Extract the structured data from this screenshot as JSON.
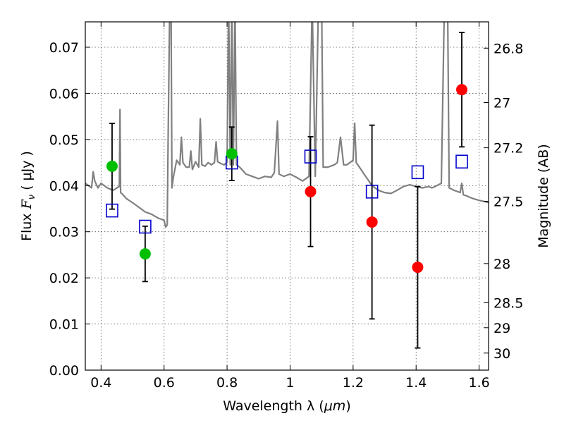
{
  "chart_data": {
    "type": "scatter",
    "xlabel_prefix": "Wavelength  λ (",
    "xlabel_unit": "μm",
    "xlabel_suffix": ")",
    "ylabel_prefix": "Flux  ",
    "ylabel_symbol": "F",
    "ylabel_subscript": "ν",
    "ylabel_suffix": "  ( μJy )",
    "y2label": "Magnitude (AB)",
    "xlim": [
      0.35,
      1.63
    ],
    "ylim": [
      0.0,
      0.0755
    ],
    "grid": true,
    "x_ticks": [
      0.4,
      0.6,
      0.8,
      1.0,
      1.2,
      1.4,
      1.6
    ],
    "x_tick_labels": [
      "0.4",
      "0.6",
      "0.8",
      "1",
      "1.2",
      "1.4",
      "1.6"
    ],
    "y_ticks": [
      0.0,
      0.01,
      0.02,
      0.03,
      0.04,
      0.05,
      0.06,
      0.07
    ],
    "y_tick_labels": [
      "0.00",
      "0.01",
      "0.02",
      "0.03",
      "0.04",
      "0.05",
      "0.06",
      "0.07"
    ],
    "y2_ticks": [
      {
        "label": "26.8",
        "flux": 0.0698
      },
      {
        "label": "27",
        "flux": 0.058
      },
      {
        "label": "27.2",
        "flux": 0.0482
      },
      {
        "label": "27.5",
        "flux": 0.0366
      },
      {
        "label": "28",
        "flux": 0.0231
      },
      {
        "label": "28.5",
        "flux": 0.0146
      },
      {
        "label": "29",
        "flux": 0.0092
      },
      {
        "label": "30",
        "flux": 0.0037
      }
    ],
    "colors": {
      "spectrum": "#808080",
      "green_points": "#00bf00",
      "red_points": "#ff0000",
      "model_squares": "#0000cc",
      "errorbars": "#000000"
    },
    "series": [
      {
        "name": "Template spectrum",
        "kind": "line",
        "points": [
          [
            0.35,
            0.0405
          ],
          [
            0.37,
            0.0395
          ],
          [
            0.375,
            0.043
          ],
          [
            0.38,
            0.041
          ],
          [
            0.39,
            0.0395
          ],
          [
            0.4,
            0.0405
          ],
          [
            0.41,
            0.04
          ],
          [
            0.42,
            0.0395
          ],
          [
            0.43,
            0.0392
          ],
          [
            0.44,
            0.039
          ],
          [
            0.45,
            0.0395
          ],
          [
            0.458,
            0.0398
          ],
          [
            0.46,
            0.0565
          ],
          [
            0.462,
            0.0385
          ],
          [
            0.47,
            0.038
          ],
          [
            0.48,
            0.0372
          ],
          [
            0.5,
            0.0363
          ],
          [
            0.52,
            0.0353
          ],
          [
            0.54,
            0.0343
          ],
          [
            0.56,
            0.0338
          ],
          [
            0.58,
            0.033
          ],
          [
            0.6,
            0.0325
          ],
          [
            0.605,
            0.031
          ],
          [
            0.61,
            0.0315
          ],
          [
            0.613,
            0.0505
          ],
          [
            0.618,
            0.08
          ],
          [
            0.622,
            0.08
          ],
          [
            0.625,
            0.0395
          ],
          [
            0.63,
            0.042
          ],
          [
            0.64,
            0.0455
          ],
          [
            0.65,
            0.0445
          ],
          [
            0.655,
            0.0505
          ],
          [
            0.66,
            0.045
          ],
          [
            0.67,
            0.044
          ],
          [
            0.68,
            0.044
          ],
          [
            0.685,
            0.0475
          ],
          [
            0.69,
            0.0435
          ],
          [
            0.7,
            0.0452
          ],
          [
            0.71,
            0.044
          ],
          [
            0.715,
            0.0545
          ],
          [
            0.72,
            0.0445
          ],
          [
            0.73,
            0.0442
          ],
          [
            0.74,
            0.045
          ],
          [
            0.75,
            0.0445
          ],
          [
            0.76,
            0.045
          ],
          [
            0.765,
            0.0495
          ],
          [
            0.77,
            0.0452
          ],
          [
            0.78,
            0.0448
          ],
          [
            0.79,
            0.0445
          ],
          [
            0.8,
            0.045
          ],
          [
            0.805,
            0.08
          ],
          [
            0.81,
            0.0445
          ],
          [
            0.815,
            0.08
          ],
          [
            0.82,
            0.0445
          ],
          [
            0.825,
            0.08
          ],
          [
            0.83,
            0.0445
          ],
          [
            0.84,
            0.044
          ],
          [
            0.86,
            0.0425
          ],
          [
            0.88,
            0.042
          ],
          [
            0.9,
            0.0415
          ],
          [
            0.92,
            0.042
          ],
          [
            0.94,
            0.0418
          ],
          [
            0.95,
            0.0428
          ],
          [
            0.96,
            0.054
          ],
          [
            0.965,
            0.0425
          ],
          [
            0.98,
            0.042
          ],
          [
            1.0,
            0.0425
          ],
          [
            1.02,
            0.0418
          ],
          [
            1.04,
            0.041
          ],
          [
            1.06,
            0.042
          ],
          [
            1.07,
            0.08
          ],
          [
            1.08,
            0.042
          ],
          [
            1.09,
            0.08
          ],
          [
            1.1,
            0.08
          ],
          [
            1.105,
            0.044
          ],
          [
            1.12,
            0.044
          ],
          [
            1.14,
            0.0445
          ],
          [
            1.15,
            0.045
          ],
          [
            1.16,
            0.0505
          ],
          [
            1.17,
            0.0445
          ],
          [
            1.18,
            0.0445
          ],
          [
            1.19,
            0.045
          ],
          [
            1.2,
            0.0455
          ],
          [
            1.205,
            0.0535
          ],
          [
            1.21,
            0.045
          ],
          [
            1.22,
            0.044
          ],
          [
            1.24,
            0.042
          ],
          [
            1.26,
            0.04
          ],
          [
            1.28,
            0.039
          ],
          [
            1.3,
            0.0385
          ],
          [
            1.32,
            0.0383
          ],
          [
            1.34,
            0.039
          ],
          [
            1.36,
            0.0398
          ],
          [
            1.38,
            0.0402
          ],
          [
            1.4,
            0.0398
          ],
          [
            1.42,
            0.0395
          ],
          [
            1.44,
            0.0398
          ],
          [
            1.45,
            0.0395
          ],
          [
            1.46,
            0.0398
          ],
          [
            1.48,
            0.0405
          ],
          [
            1.49,
            0.08
          ],
          [
            1.5,
            0.08
          ],
          [
            1.505,
            0.0395
          ],
          [
            1.52,
            0.039
          ],
          [
            1.54,
            0.0385
          ],
          [
            1.545,
            0.0405
          ],
          [
            1.55,
            0.038
          ],
          [
            1.56,
            0.0378
          ],
          [
            1.58,
            0.0372
          ],
          [
            1.6,
            0.0368
          ],
          [
            1.62,
            0.0365
          ],
          [
            1.63,
            0.0363
          ]
        ]
      },
      {
        "name": "Observed flux (green)",
        "kind": "errorbar",
        "points": [
          {
            "x": 0.435,
            "y": 0.0442,
            "err": 0.0093
          },
          {
            "x": 0.54,
            "y": 0.0252,
            "err": 0.006
          },
          {
            "x": 0.815,
            "y": 0.0469,
            "err": 0.0058
          }
        ]
      },
      {
        "name": "Observed flux (red)",
        "kind": "errorbar",
        "points": [
          {
            "x": 1.065,
            "y": 0.0387,
            "err": 0.0119
          },
          {
            "x": 1.26,
            "y": 0.0321,
            "err": 0.021
          },
          {
            "x": 1.405,
            "y": 0.0223,
            "err": 0.0175
          },
          {
            "x": 1.545,
            "y": 0.0608,
            "err": 0.0124
          }
        ]
      },
      {
        "name": "Model flux (squares)",
        "kind": "square",
        "points": [
          [
            0.435,
            0.0346
          ],
          [
            0.54,
            0.0311
          ],
          [
            0.815,
            0.045
          ],
          [
            1.065,
            0.0463
          ],
          [
            1.26,
            0.0387
          ],
          [
            1.405,
            0.0429
          ],
          [
            1.545,
            0.0452
          ]
        ]
      }
    ]
  }
}
